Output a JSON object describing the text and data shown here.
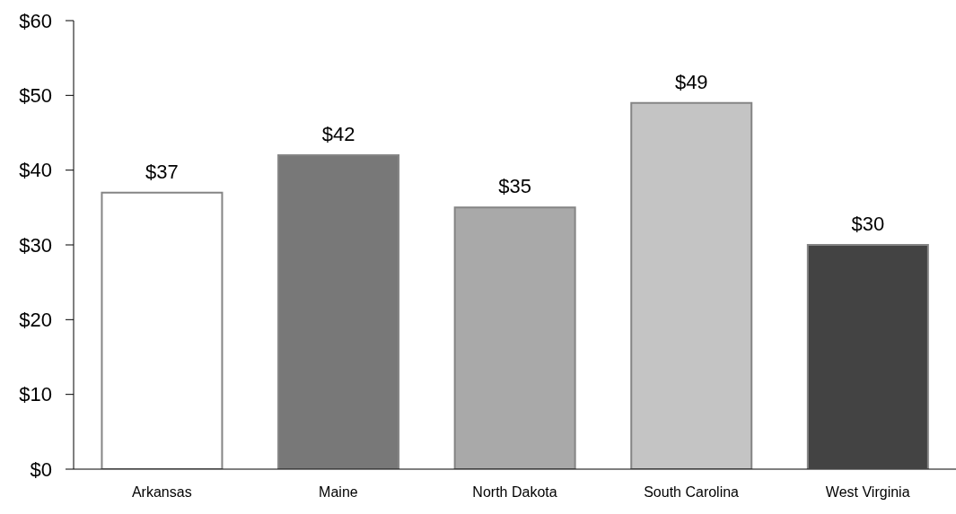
{
  "chart_data": {
    "type": "bar",
    "categories": [
      "Arkansas",
      "Maine",
      "North Dakota",
      "South Carolina",
      "West Virginia"
    ],
    "values": [
      37,
      42,
      35,
      49,
      30
    ],
    "colors": [
      "#ffffff",
      "#787878",
      "#a9a9a9",
      "#c4c4c4",
      "#434343"
    ],
    "value_labels": [
      "$37",
      "$42",
      "$35",
      "$49",
      "$30"
    ],
    "ylim": [
      0,
      60
    ],
    "yticks": [
      {
        "value": 0,
        "label": "$0"
      },
      {
        "value": 10,
        "label": "$10"
      },
      {
        "value": 20,
        "label": "$20"
      },
      {
        "value": 30,
        "label": "$30"
      },
      {
        "value": 40,
        "label": "$40"
      },
      {
        "value": 50,
        "label": "$50"
      },
      {
        "value": 60,
        "label": "$60"
      }
    ]
  }
}
